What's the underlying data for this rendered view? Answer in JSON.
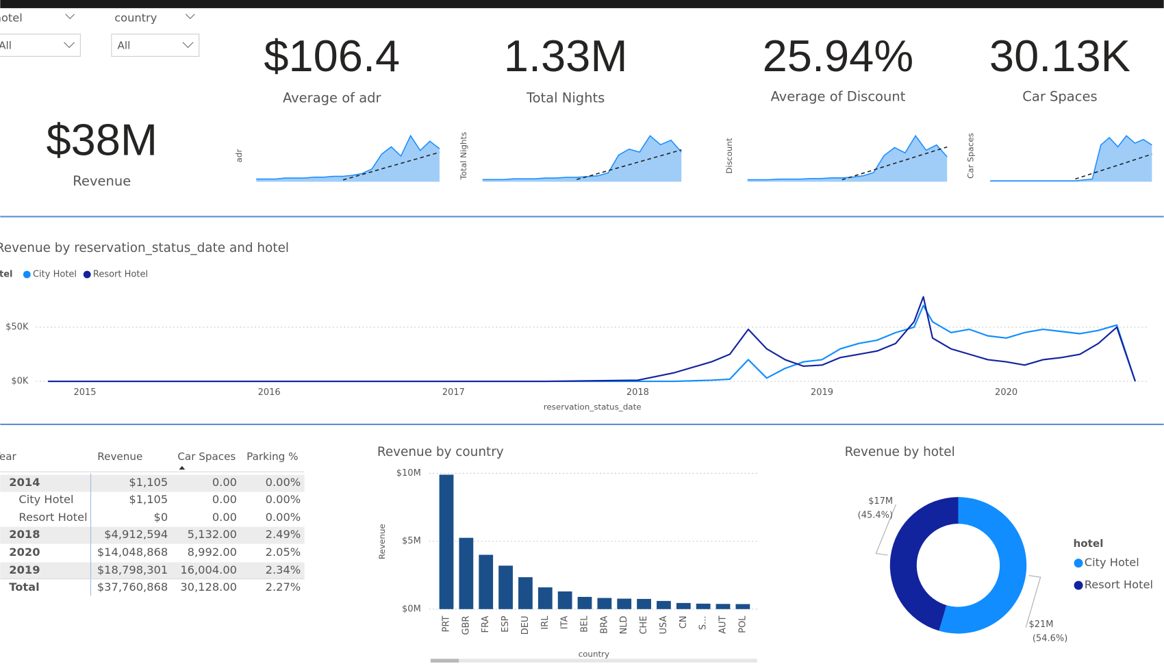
{
  "slicers": [
    {
      "label": "hotel",
      "value": "All"
    },
    {
      "label": "country",
      "value": "All"
    }
  ],
  "cards": [
    {
      "value": "$106.4",
      "label": "Average of adr"
    },
    {
      "value": "1.33M",
      "label": "Total Nights"
    },
    {
      "value": "25.94%",
      "label": "Average of Discount"
    },
    {
      "value": "30.13K",
      "label": "Car Spaces"
    },
    {
      "value": "$38M",
      "label": "Revenue"
    }
  ],
  "sparklines": [
    {
      "axis_label": "adr",
      "values": [
        3,
        3,
        3,
        4,
        4,
        4,
        5,
        5,
        6,
        6,
        7,
        9,
        14,
        30,
        38,
        28,
        50,
        34,
        44,
        36
      ],
      "trend": [
        null,
        null,
        null,
        null,
        null,
        null,
        null,
        null,
        null,
        2,
        5,
        8,
        11,
        14,
        17,
        20,
        23,
        26,
        29,
        32
      ]
    },
    {
      "axis_label": "Total Nights",
      "values": [
        3,
        3,
        3,
        4,
        4,
        4,
        5,
        5,
        6,
        6,
        7,
        8,
        12,
        36,
        44,
        40,
        62,
        50,
        56,
        40
      ],
      "trend": [
        null,
        null,
        null,
        null,
        null,
        null,
        null,
        null,
        null,
        3,
        7,
        11,
        15,
        19,
        23,
        27,
        31,
        35,
        39,
        43
      ]
    },
    {
      "axis_label": "Discount",
      "values": [
        3,
        3,
        3,
        4,
        4,
        4,
        5,
        5,
        6,
        6,
        7,
        9,
        14,
        40,
        52,
        44,
        70,
        48,
        56,
        38
      ],
      "trend": [
        null,
        null,
        null,
        null,
        null,
        null,
        null,
        null,
        null,
        3,
        8,
        13,
        18,
        23,
        28,
        33,
        38,
        43,
        48,
        53
      ]
    },
    {
      "axis_label": "Car Spaces",
      "values": [
        1,
        1,
        1,
        1,
        1,
        1,
        1,
        1,
        1,
        1,
        1,
        2,
        3,
        40,
        48,
        38,
        50,
        42,
        46,
        40
      ],
      "trend": [
        null,
        null,
        null,
        null,
        null,
        null,
        null,
        null,
        null,
        null,
        3,
        6,
        9,
        12,
        15,
        18,
        21,
        24,
        27,
        30
      ]
    }
  ],
  "chart_data": [
    {
      "type": "line",
      "title": "Revenue by reservation_status_date and hotel",
      "x_label": "reservation_status_date",
      "legend_title": "hotel",
      "legend": "top-left",
      "x": [
        2014.8,
        2015.5,
        2016.5,
        2017.5,
        2018.0,
        2018.2,
        2018.4,
        2018.5,
        2018.6,
        2018.7,
        2018.8,
        2018.9,
        2019.0,
        2019.1,
        2019.2,
        2019.3,
        2019.4,
        2019.5,
        2019.55,
        2019.6,
        2019.7,
        2019.8,
        2019.9,
        2020.0,
        2020.1,
        2020.2,
        2020.3,
        2020.4,
        2020.5,
        2020.6,
        2020.7
      ],
      "series": [
        {
          "name": "City Hotel",
          "color": "#118dff",
          "values": [
            0,
            0,
            0,
            0,
            0,
            0,
            1000,
            2000,
            20000,
            3000,
            12000,
            18000,
            20000,
            30000,
            35000,
            38000,
            45000,
            50000,
            70000,
            55000,
            45000,
            48000,
            42000,
            40000,
            45000,
            48000,
            46000,
            44000,
            47000,
            52000,
            0
          ]
        },
        {
          "name": "Resort Hotel",
          "color": "#12239e",
          "values": [
            0,
            0,
            0,
            0,
            1000,
            8000,
            18000,
            25000,
            48000,
            30000,
            20000,
            14000,
            15000,
            22000,
            25000,
            28000,
            35000,
            55000,
            78000,
            40000,
            30000,
            25000,
            20000,
            18000,
            15000,
            20000,
            22000,
            25000,
            35000,
            50000,
            0
          ]
        }
      ],
      "xlim": [
        2014.79,
        2020.71
      ],
      "xticks": [
        2015,
        2016,
        2017,
        2018,
        2019,
        2020
      ],
      "ylim": [
        0,
        80000
      ],
      "yticks": [
        {
          "value": 0,
          "label": "$0K"
        },
        {
          "value": 50000,
          "label": "$50K"
        }
      ],
      "grid": true
    },
    {
      "type": "bar",
      "title": "Revenue by country",
      "x_label": "country",
      "y_label": "Revenue",
      "color": "#1b4f8a",
      "categories": [
        "PRT",
        "GBR",
        "FRA",
        "ESP",
        "DEU",
        "IRL",
        "ITA",
        "BEL",
        "BRA",
        "NLD",
        "CHE",
        "USA",
        "CN",
        "S...",
        "AUT",
        "POL"
      ],
      "values": [
        9900000,
        5250000,
        4000000,
        3200000,
        2350000,
        1600000,
        1300000,
        900000,
        820000,
        770000,
        750000,
        600000,
        450000,
        400000,
        380000,
        370000
      ],
      "ylim": [
        0,
        10000000
      ],
      "yticks": [
        {
          "value": 0,
          "label": "$0M"
        },
        {
          "value": 5000000,
          "label": "$5M"
        },
        {
          "value": 10000000,
          "label": "$10M"
        }
      ],
      "grid": true
    },
    {
      "type": "pie",
      "donut": true,
      "title": "Revenue by hotel",
      "legend_title": "hotel",
      "legend": "right",
      "categories": [
        "City Hotel",
        "Resort Hotel"
      ],
      "colors": [
        "#118dff",
        "#12239e"
      ],
      "values": [
        20600000,
        17160000
      ],
      "value_labels": [
        "$21M",
        "$17M"
      ],
      "percent_labels": [
        "(54.6%)",
        "(45.4%)"
      ]
    }
  ],
  "table": {
    "headers": [
      "Year",
      "Revenue",
      "Car Spaces",
      "Parking %"
    ],
    "rows": [
      [
        "2014",
        "$1,105",
        "0.00",
        "0.00%"
      ],
      [
        "City Hotel",
        "$1,105",
        "0.00",
        "0.00%"
      ],
      [
        "Resort Hotel",
        "$0",
        "0.00",
        "0.00%"
      ],
      [
        "2018",
        "$4,912,594",
        "5,132.00",
        "2.49%"
      ],
      [
        "2020",
        "$14,048,868",
        "8,992.00",
        "2.05%"
      ],
      [
        "2019",
        "$18,798,301",
        "16,004.00",
        "2.34%"
      ],
      [
        "Total",
        "$37,760,868",
        "30,128.00",
        "2.27%"
      ]
    ]
  }
}
